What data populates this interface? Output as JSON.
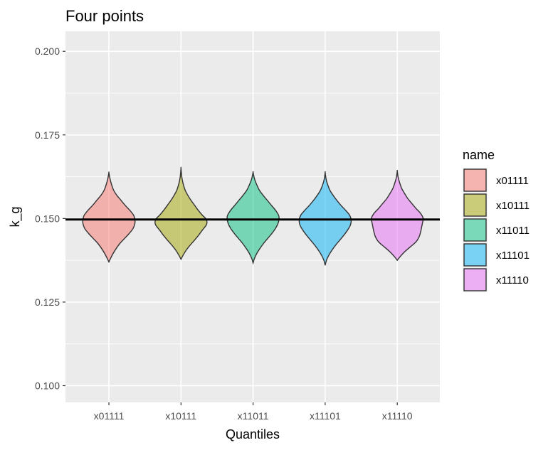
{
  "chart_data": {
    "type": "violin",
    "title": "Four points",
    "xlabel": "Quantiles",
    "ylabel": "k_g",
    "ylim": [
      0.095,
      0.206
    ],
    "yticks": [
      "0.100",
      "0.125",
      "0.150",
      "0.175",
      "0.200"
    ],
    "categories": [
      "x01111",
      "x10111",
      "x11011",
      "x11101",
      "x11110"
    ],
    "reference_line": 0.1497,
    "legend": {
      "title": "name",
      "placement": "right",
      "entries": [
        "x01111",
        "x10111",
        "x11011",
        "x11101",
        "x11110"
      ]
    },
    "grid": true,
    "colors": {
      "panel_bg": "#ebebeb",
      "grid": "#ffffff",
      "outline": "#333333",
      "reference": "#000000",
      "x01111": "#F8766D",
      "x10111": "#A3A500",
      "x11011": "#00BF7D",
      "x11101": "#00B0F6",
      "x11110": "#E76BF3"
    },
    "violins": [
      {
        "name": "x01111",
        "min": 0.137,
        "max": 0.1637,
        "median": 0.1497,
        "profile": [
          [
            0.137,
            0.0
          ],
          [
            0.138,
            0.06
          ],
          [
            0.1395,
            0.16
          ],
          [
            0.141,
            0.28
          ],
          [
            0.1425,
            0.42
          ],
          [
            0.144,
            0.6
          ],
          [
            0.1455,
            0.78
          ],
          [
            0.147,
            0.93
          ],
          [
            0.1485,
            1.0
          ],
          [
            0.1497,
            1.0
          ],
          [
            0.151,
            0.95
          ],
          [
            0.1525,
            0.8
          ],
          [
            0.154,
            0.62
          ],
          [
            0.1555,
            0.46
          ],
          [
            0.157,
            0.3
          ],
          [
            0.1585,
            0.18
          ],
          [
            0.1605,
            0.09
          ],
          [
            0.162,
            0.04
          ],
          [
            0.1637,
            0.0
          ]
        ]
      },
      {
        "name": "x10111",
        "min": 0.1378,
        "max": 0.165,
        "median": 0.1495,
        "profile": [
          [
            0.1378,
            0.0
          ],
          [
            0.139,
            0.08
          ],
          [
            0.1405,
            0.2
          ],
          [
            0.142,
            0.35
          ],
          [
            0.1435,
            0.52
          ],
          [
            0.145,
            0.68
          ],
          [
            0.1465,
            0.82
          ],
          [
            0.148,
            0.97
          ],
          [
            0.149,
            1.0
          ],
          [
            0.15,
            0.95
          ],
          [
            0.151,
            0.82
          ],
          [
            0.1525,
            0.66
          ],
          [
            0.154,
            0.52
          ],
          [
            0.1555,
            0.38
          ],
          [
            0.157,
            0.26
          ],
          [
            0.1585,
            0.16
          ],
          [
            0.1605,
            0.08
          ],
          [
            0.1625,
            0.03
          ],
          [
            0.165,
            0.0
          ]
        ]
      },
      {
        "name": "x11011",
        "min": 0.1367,
        "max": 0.1638,
        "median": 0.1503,
        "profile": [
          [
            0.1367,
            0.0
          ],
          [
            0.138,
            0.05
          ],
          [
            0.1395,
            0.14
          ],
          [
            0.141,
            0.26
          ],
          [
            0.1425,
            0.4
          ],
          [
            0.144,
            0.56
          ],
          [
            0.1455,
            0.72
          ],
          [
            0.147,
            0.86
          ],
          [
            0.1485,
            0.96
          ],
          [
            0.15,
            1.0
          ],
          [
            0.151,
            0.98
          ],
          [
            0.1525,
            0.86
          ],
          [
            0.154,
            0.7
          ],
          [
            0.1555,
            0.54
          ],
          [
            0.157,
            0.38
          ],
          [
            0.1585,
            0.24
          ],
          [
            0.1605,
            0.12
          ],
          [
            0.162,
            0.05
          ],
          [
            0.1638,
            0.0
          ]
        ]
      },
      {
        "name": "x11101",
        "min": 0.136,
        "max": 0.1638,
        "median": 0.1497,
        "profile": [
          [
            0.136,
            0.0
          ],
          [
            0.1375,
            0.05
          ],
          [
            0.139,
            0.14
          ],
          [
            0.1405,
            0.26
          ],
          [
            0.142,
            0.4
          ],
          [
            0.1435,
            0.56
          ],
          [
            0.145,
            0.72
          ],
          [
            0.1465,
            0.86
          ],
          [
            0.148,
            0.97
          ],
          [
            0.1495,
            1.0
          ],
          [
            0.151,
            0.94
          ],
          [
            0.1525,
            0.78
          ],
          [
            0.154,
            0.6
          ],
          [
            0.1555,
            0.44
          ],
          [
            0.157,
            0.3
          ],
          [
            0.1585,
            0.18
          ],
          [
            0.1605,
            0.08
          ],
          [
            0.162,
            0.03
          ],
          [
            0.1638,
            0.0
          ]
        ]
      },
      {
        "name": "x11110",
        "min": 0.1375,
        "max": 0.1642,
        "median": 0.1495,
        "profile": [
          [
            0.1375,
            0.0
          ],
          [
            0.1385,
            0.1
          ],
          [
            0.14,
            0.28
          ],
          [
            0.1415,
            0.5
          ],
          [
            0.143,
            0.72
          ],
          [
            0.1445,
            0.84
          ],
          [
            0.146,
            0.9
          ],
          [
            0.1475,
            0.94
          ],
          [
            0.149,
            0.98
          ],
          [
            0.15,
            1.0
          ],
          [
            0.1515,
            0.9
          ],
          [
            0.153,
            0.72
          ],
          [
            0.1545,
            0.56
          ],
          [
            0.156,
            0.4
          ],
          [
            0.1575,
            0.28
          ],
          [
            0.159,
            0.17
          ],
          [
            0.161,
            0.08
          ],
          [
            0.1625,
            0.03
          ],
          [
            0.1642,
            0.0
          ]
        ]
      }
    ]
  }
}
